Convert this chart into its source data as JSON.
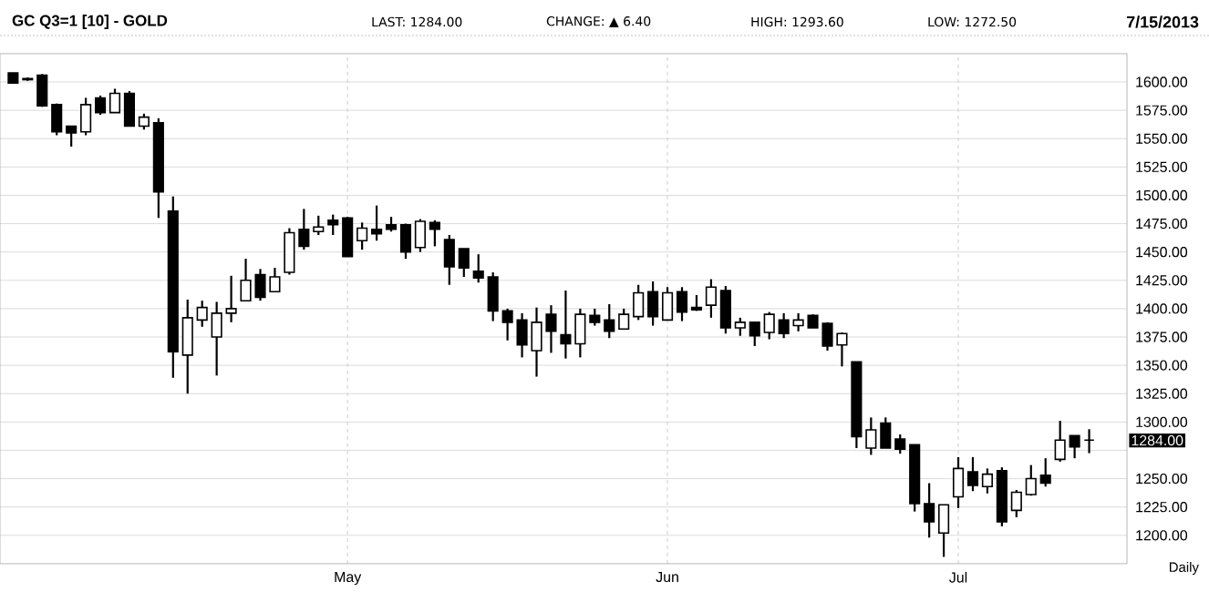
{
  "chart_data": {
    "type": "candlestick",
    "title": "GC Q3=1 [10] - GOLD",
    "subtitle": "7/15/2013",
    "annotations": [
      "LAST: 1284.00",
      "CHANGE: ▲ 6.40",
      "HIGH: 1293.60",
      "LOW: 1272.50",
      "Daily",
      "1284.00"
    ],
    "categories": [
      null,
      null,
      null,
      null,
      null,
      null,
      null,
      null,
      null,
      null,
      null,
      null,
      null,
      null,
      null,
      null,
      null,
      null,
      null,
      null,
      null,
      null,
      null,
      "May",
      null,
      null,
      null,
      null,
      null,
      null,
      null,
      null,
      null,
      null,
      null,
      null,
      null,
      null,
      null,
      null,
      null,
      null,
      null,
      null,
      null,
      "Jun",
      null,
      null,
      null,
      null,
      null,
      null,
      null,
      null,
      null,
      null,
      null,
      null,
      null,
      null,
      null,
      null,
      null,
      null,
      null,
      "Jul",
      null,
      null,
      null,
      null,
      null,
      null,
      null,
      null,
      null
    ],
    "ohlc": [
      [
        1608,
        1608,
        1599,
        1599
      ],
      [
        1603,
        1604,
        1601,
        1602
      ],
      [
        1606,
        1607,
        1578,
        1579
      ],
      [
        1580,
        1581,
        1553,
        1556
      ],
      [
        1561,
        1561,
        1543,
        1555
      ],
      [
        1556,
        1586,
        1553,
        1580
      ],
      [
        1586,
        1588,
        1571,
        1573
      ],
      [
        1573,
        1594,
        1573,
        1590
      ],
      [
        1590,
        1592,
        1561,
        1561
      ],
      [
        1561,
        1572,
        1558,
        1569
      ],
      [
        1564,
        1568,
        1480,
        1503
      ],
      [
        1486,
        1499,
        1339,
        1362
      ],
      [
        1359,
        1408,
        1325,
        1392
      ],
      [
        1390,
        1407,
        1384,
        1401
      ],
      [
        1375,
        1406,
        1341,
        1396
      ],
      [
        1396,
        1429,
        1388,
        1400
      ],
      [
        1407,
        1444,
        1407,
        1425
      ],
      [
        1430,
        1435,
        1407,
        1410
      ],
      [
        1415,
        1436,
        1415,
        1428
      ],
      [
        1432,
        1471,
        1430,
        1467
      ],
      [
        1470,
        1488,
        1452,
        1455
      ],
      [
        1468,
        1482,
        1465,
        1472
      ],
      [
        1478,
        1483,
        1465,
        1474
      ],
      [
        1480,
        1481,
        1446,
        1446
      ],
      [
        1460,
        1476,
        1452,
        1471
      ],
      [
        1470,
        1491,
        1460,
        1466
      ],
      [
        1474,
        1481,
        1468,
        1470
      ],
      [
        1474,
        1475,
        1444,
        1450
      ],
      [
        1454,
        1479,
        1450,
        1477
      ],
      [
        1476,
        1478,
        1455,
        1470
      ],
      [
        1461,
        1465,
        1421,
        1437
      ],
      [
        1453,
        1453,
        1428,
        1436
      ],
      [
        1433,
        1448,
        1423,
        1427
      ],
      [
        1428,
        1432,
        1389,
        1398
      ],
      [
        1398,
        1400,
        1372,
        1388
      ],
      [
        1390,
        1396,
        1357,
        1368
      ],
      [
        1363,
        1401,
        1340,
        1388
      ],
      [
        1395,
        1403,
        1361,
        1380
      ],
      [
        1377,
        1416,
        1356,
        1369
      ],
      [
        1369,
        1400,
        1357,
        1395
      ],
      [
        1394,
        1400,
        1385,
        1388
      ],
      [
        1390,
        1404,
        1374,
        1380
      ],
      [
        1382,
        1400,
        1382,
        1395
      ],
      [
        1393,
        1421,
        1390,
        1414
      ],
      [
        1415,
        1424,
        1385,
        1393
      ],
      [
        1390,
        1419,
        1390,
        1414
      ],
      [
        1415,
        1419,
        1389,
        1397
      ],
      [
        1401,
        1412,
        1398,
        1399
      ],
      [
        1403,
        1426,
        1392,
        1419
      ],
      [
        1416,
        1420,
        1378,
        1383
      ],
      [
        1383,
        1392,
        1376,
        1388
      ],
      [
        1388,
        1388,
        1367,
        1376
      ],
      [
        1379,
        1397,
        1373,
        1395
      ],
      [
        1390,
        1396,
        1374,
        1378
      ],
      [
        1385,
        1396,
        1380,
        1390
      ],
      [
        1394,
        1395,
        1383,
        1383
      ],
      [
        1387,
        1388,
        1363,
        1367
      ],
      [
        1368,
        1379,
        1349,
        1378
      ],
      [
        1353,
        1353,
        1277,
        1287
      ],
      [
        1277,
        1304,
        1271,
        1293
      ],
      [
        1299,
        1304,
        1277,
        1277
      ],
      [
        1285,
        1289,
        1272,
        1276
      ],
      [
        1280,
        1280,
        1221,
        1228
      ],
      [
        1228,
        1246,
        1198,
        1212
      ],
      [
        1202,
        1227,
        1181,
        1227
      ],
      [
        1234,
        1269,
        1224,
        1259
      ],
      [
        1256,
        1269,
        1239,
        1244
      ],
      [
        1243,
        1259,
        1237,
        1254
      ],
      [
        1257,
        1260,
        1208,
        1212
      ],
      [
        1222,
        1240,
        1216,
        1238
      ],
      [
        1236,
        1262,
        1235,
        1250
      ],
      [
        1253,
        1268,
        1243,
        1246
      ],
      [
        1267,
        1301,
        1265,
        1284
      ],
      [
        1288,
        1288,
        1268,
        1278
      ],
      [
        1284,
        1293.6,
        1272.5,
        1284
      ]
    ],
    "ylim": [
      1175,
      1625
    ],
    "yticks": [
      {
        "value": 1200,
        "label": "1200.00"
      },
      {
        "value": 1225,
        "label": "1225.00"
      },
      {
        "value": 1250,
        "label": "1250.00"
      },
      {
        "value": 1275,
        "label": null
      },
      {
        "value": 1300,
        "label": "1300.00"
      },
      {
        "value": 1325,
        "label": "1325.00"
      },
      {
        "value": 1350,
        "label": "1350.00"
      },
      {
        "value": 1375,
        "label": "1375.00"
      },
      {
        "value": 1400,
        "label": "1400.00"
      },
      {
        "value": 1425,
        "label": "1425.00"
      },
      {
        "value": 1450,
        "label": "1450.00"
      },
      {
        "value": 1475,
        "label": "1475.00"
      },
      {
        "value": 1500,
        "label": "1500.00"
      },
      {
        "value": 1525,
        "label": "1525.00"
      },
      {
        "value": 1550,
        "label": "1550.00"
      },
      {
        "value": 1575,
        "label": "1575.00"
      },
      {
        "value": 1600,
        "label": "1600.00"
      }
    ],
    "grid": true
  }
}
